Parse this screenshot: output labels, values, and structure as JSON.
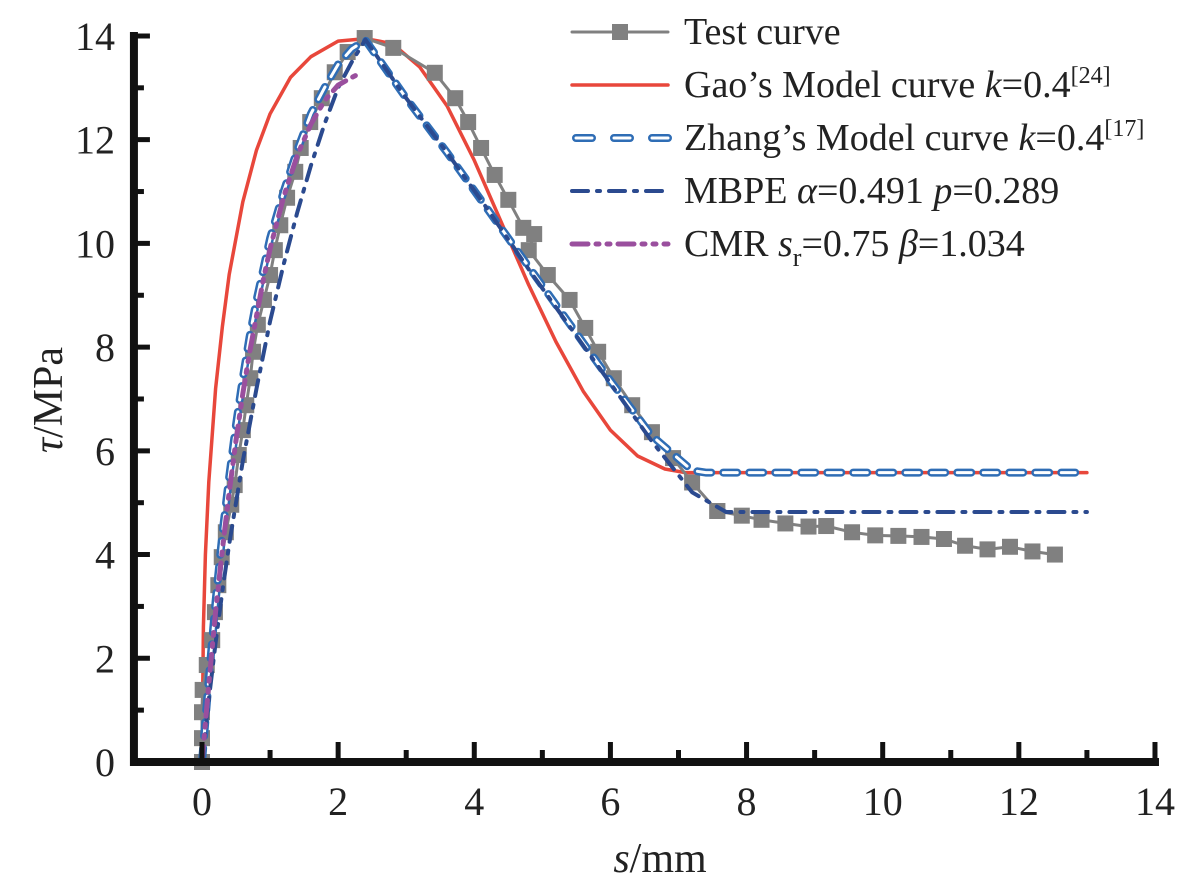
{
  "chart_data": {
    "type": "line",
    "title": "",
    "xlabel_var": "s",
    "xlabel_unit": "/mm",
    "ylabel_var": "τ",
    "ylabel_unit": "/MPa",
    "xlim": [
      -1,
      14
    ],
    "ylim": [
      0,
      14
    ],
    "xticks": [
      0,
      2,
      4,
      6,
      8,
      10,
      12,
      14
    ],
    "yticks": [
      0,
      2,
      4,
      6,
      8,
      10,
      12,
      14
    ],
    "grid": false,
    "legend_position": "top-right",
    "series": [
      {
        "name": "Test curve",
        "legend": {
          "main": "Test curve",
          "sup": "",
          "sub_parts": []
        },
        "color": "#808080",
        "style": "solid-square-markers",
        "x": [
          0,
          0,
          0,
          0.01,
          0.07,
          0.15,
          0.19,
          0.24,
          0.29,
          0.35,
          0.43,
          0.48,
          0.54,
          0.6,
          0.65,
          0.71,
          0.75,
          0.82,
          0.91,
          1.0,
          1.07,
          1.15,
          1.25,
          1.37,
          1.45,
          1.59,
          1.76,
          1.95,
          2.14,
          2.39,
          2.81,
          3.42,
          3.72,
          3.91,
          4.1,
          4.3,
          4.5,
          4.72,
          4.88,
          4.8,
          5.08,
          5.4,
          5.63,
          5.82,
          6.05,
          6.32,
          6.61,
          6.92,
          7.2,
          7.57,
          7.57,
          7.93,
          8.22,
          8.57,
          8.91,
          9.17,
          9.55,
          9.89,
          10.23,
          10.57,
          10.9,
          11.21,
          11.54,
          11.87,
          12.2,
          12.53
        ],
        "y": [
          0,
          0.46,
          0.96,
          1.39,
          1.87,
          2.35,
          2.89,
          3.41,
          3.95,
          4.43,
          4.96,
          5.34,
          5.92,
          6.4,
          6.88,
          7.4,
          7.91,
          8.43,
          8.91,
          9.39,
          9.87,
          10.35,
          10.88,
          11.38,
          11.84,
          12.34,
          12.8,
          13.3,
          13.69,
          13.96,
          13.77,
          13.29,
          12.8,
          12.34,
          11.84,
          11.32,
          10.84,
          10.3,
          10.18,
          9.87,
          9.39,
          8.91,
          8.37,
          7.91,
          7.4,
          6.88,
          6.36,
          5.86,
          5.39,
          4.84,
          4.84,
          4.75,
          4.67,
          4.6,
          4.54,
          4.55,
          4.43,
          4.37,
          4.36,
          4.34,
          4.3,
          4.17,
          4.1,
          4.15,
          4.06,
          4.0
        ]
      },
      {
        "name": "Gao's Model curve k=0.4[24]",
        "legend": {
          "main": "Gao’s Model curve ",
          "italic": "k",
          "rest": "=0.4",
          "sup": "[24]"
        },
        "color": "#e8473b",
        "style": "solid",
        "x": [
          0,
          0.02,
          0.05,
          0.1,
          0.2,
          0.3,
          0.4,
          0.6,
          0.8,
          1.0,
          1.3,
          1.6,
          2.0,
          2.4,
          2.8,
          3.2,
          3.6,
          4.0,
          4.4,
          4.8,
          5.2,
          5.6,
          6.0,
          6.4,
          6.8,
          7.1,
          7.4,
          8,
          9,
          10,
          11,
          12,
          13
        ],
        "y": [
          0,
          2.6,
          4.0,
          5.4,
          7.2,
          8.4,
          9.4,
          10.8,
          11.8,
          12.5,
          13.2,
          13.6,
          13.9,
          13.95,
          13.85,
          13.4,
          12.65,
          11.6,
          10.4,
          9.2,
          8.1,
          7.15,
          6.4,
          5.9,
          5.65,
          5.58,
          5.58,
          5.58,
          5.58,
          5.58,
          5.58,
          5.58,
          5.58
        ]
      },
      {
        "name": "Zhang's Model curve k=0.4[17]",
        "legend": {
          "main": "Zhang’s Model curve ",
          "italic": "k",
          "rest": "=0.4",
          "sup": "[17]"
        },
        "color": "#2f6db5",
        "style": "hollow-dash",
        "x": [
          0,
          0.1,
          0.2,
          0.3,
          0.4,
          0.5,
          0.6,
          0.7,
          0.8,
          0.9,
          1.0,
          1.2,
          1.4,
          1.6,
          1.8,
          2.0,
          2.2,
          2.4,
          3.0,
          3.6,
          4.2,
          4.8,
          5.4,
          6.0,
          6.6,
          7.2,
          7.4,
          8,
          9,
          10,
          11,
          12,
          13
        ],
        "y": [
          0,
          1.6,
          3.1,
          4.4,
          5.5,
          6.5,
          7.4,
          8.2,
          8.9,
          9.5,
          10.1,
          11.0,
          11.8,
          12.5,
          13.0,
          13.45,
          13.75,
          13.92,
          12.8,
          11.75,
          10.65,
          9.55,
          8.45,
          7.35,
          6.3,
          5.62,
          5.58,
          5.58,
          5.58,
          5.58,
          5.58,
          5.58,
          5.58
        ]
      },
      {
        "name": "MBPE α=0.491 p=0.289",
        "legend": {
          "main": "MBPE ",
          "italic": "α",
          "rest": "=0.491 ",
          "italic2": "p",
          "rest2": "=0.289"
        },
        "color": "#2b4a8f",
        "style": "dash-dot",
        "x": [
          0,
          0.1,
          0.2,
          0.3,
          0.4,
          0.5,
          0.6,
          0.8,
          1.0,
          1.2,
          1.4,
          1.6,
          1.8,
          2.0,
          2.2,
          2.4,
          3.0,
          3.6,
          4.2,
          4.8,
          5.4,
          6.0,
          6.6,
          7.2,
          7.7,
          8,
          9,
          10,
          11,
          12,
          13
        ],
        "y": [
          0,
          1.2,
          2.3,
          3.3,
          4.2,
          5.0,
          5.8,
          7.2,
          8.5,
          9.6,
          10.6,
          11.5,
          12.3,
          13.0,
          13.5,
          13.93,
          12.8,
          11.75,
          10.65,
          9.5,
          8.4,
          7.3,
          6.2,
          5.2,
          4.82,
          4.82,
          4.82,
          4.82,
          4.82,
          4.82,
          4.82
        ]
      },
      {
        "name": "CMR sr=0.75 β=1.034",
        "legend": {
          "main": "CMR ",
          "italic": "s",
          "sub": "r",
          "rest": "=0.75 ",
          "italic2": "β",
          "rest2": "=1.034"
        },
        "color": "#9a4f9e",
        "style": "dash-dot-dot",
        "x": [
          0,
          0.1,
          0.2,
          0.3,
          0.4,
          0.5,
          0.6,
          0.7,
          0.8,
          0.9,
          1.0,
          1.2,
          1.4,
          1.6,
          1.8,
          2.0,
          2.2,
          2.35
        ],
        "y": [
          0,
          1.5,
          2.9,
          4.1,
          5.2,
          6.2,
          7.1,
          7.9,
          8.6,
          9.3,
          9.9,
          10.9,
          11.7,
          12.3,
          12.75,
          13.05,
          13.2,
          13.3
        ]
      }
    ]
  }
}
